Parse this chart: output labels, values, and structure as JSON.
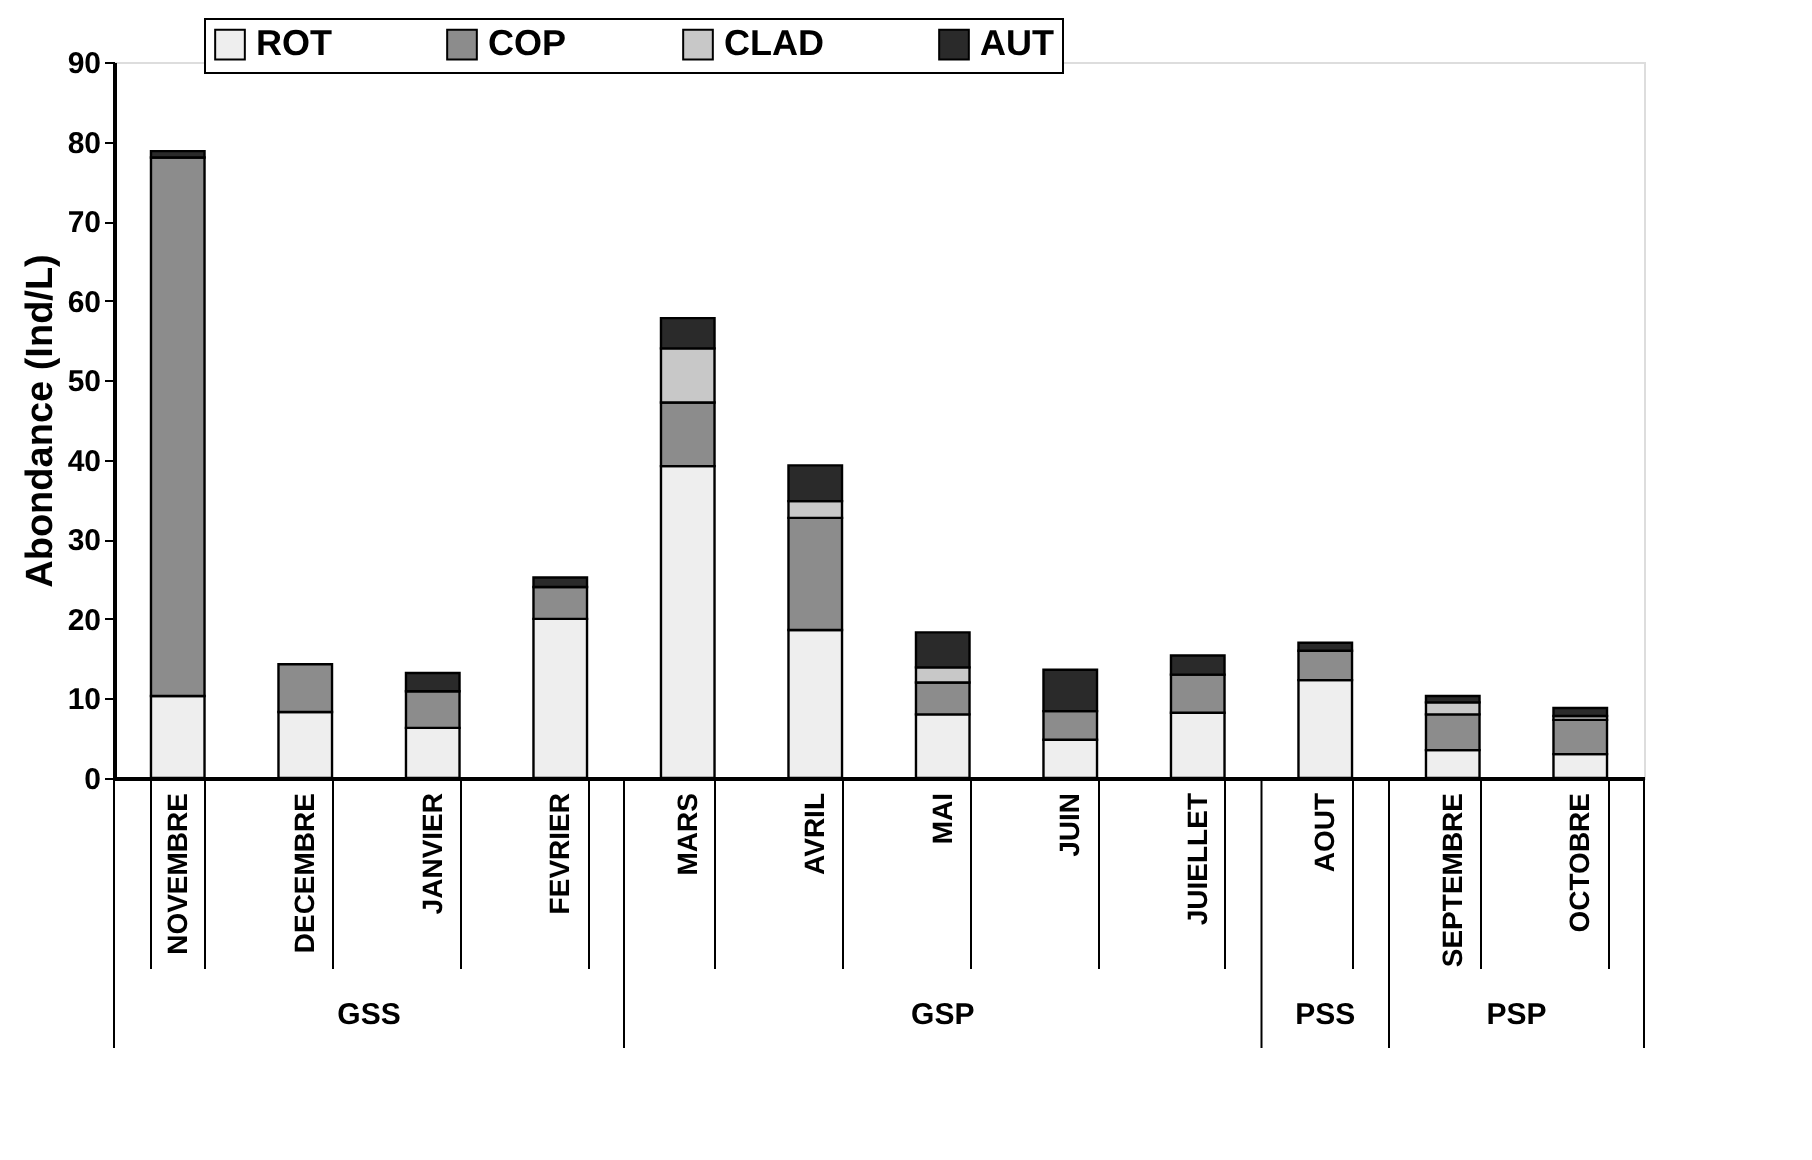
{
  "chart_data": {
    "type": "bar",
    "stacked": true,
    "ylabel": "Abondance (Ind/L)",
    "categories": [
      "NOVEMBRE",
      "DECEMBRE",
      "JANVIER",
      "FEVRIER",
      "MARS",
      "AVRIL",
      "MAI",
      "JUIN",
      "JUIELLET",
      "AOUT",
      "SEPTEMBRE",
      "OCTOBRE"
    ],
    "series": [
      {
        "name": "ROT",
        "color": "#eeeeee",
        "values": [
          10.3,
          8.3,
          6.3,
          20,
          39.2,
          18.6,
          8.0,
          4.8,
          8.2,
          12.3,
          3.5,
          3.0
        ]
      },
      {
        "name": "COP",
        "color": "#8c8c8c",
        "values": [
          67.7,
          6.0,
          4.6,
          4.0,
          8.0,
          14.1,
          4.0,
          3.6,
          4.8,
          3.7,
          4.5,
          4.3
        ]
      },
      {
        "name": "CLAD",
        "color": "#c8c8c8",
        "values": [
          0,
          0,
          0,
          0,
          6.8,
          2.1,
          1.9,
          0,
          0,
          0,
          1.5,
          0.5
        ]
      },
      {
        "name": "AUT",
        "color": "#2a2a2a",
        "values": [
          0.8,
          0,
          2.3,
          1.2,
          3.8,
          4.5,
          4.4,
          5.2,
          2.4,
          1.0,
          0.8,
          1.0
        ]
      }
    ],
    "ylim": [
      0,
      90
    ],
    "yticks": [
      0,
      10,
      20,
      30,
      40,
      50,
      60,
      70,
      80,
      90
    ],
    "grid": false,
    "legend": "top",
    "annotations": [
      "GSS",
      "GSP",
      "PSS",
      "PSP"
    ]
  }
}
